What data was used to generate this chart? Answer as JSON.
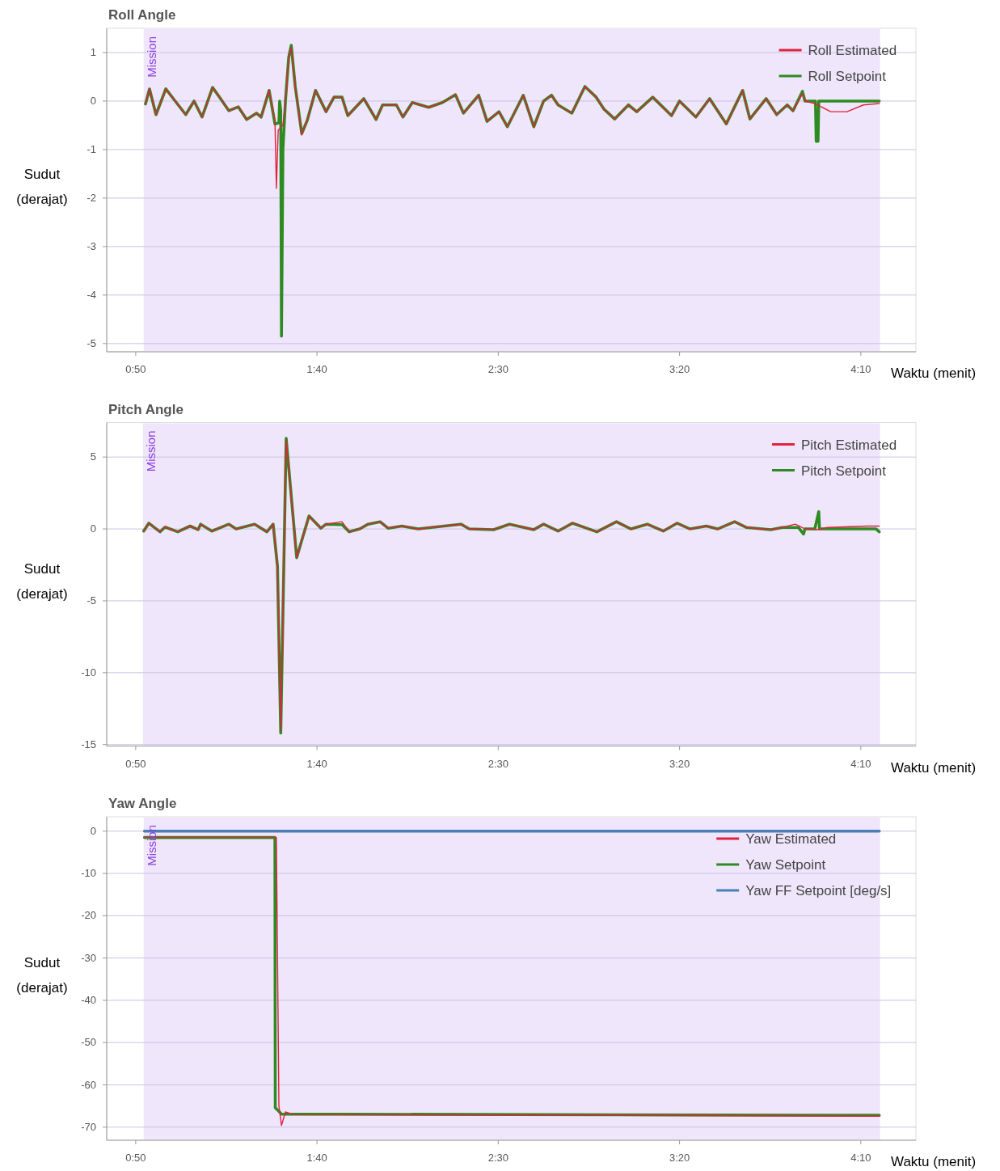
{
  "chart_data": [
    {
      "type": "line",
      "title": "Roll Angle",
      "xlabel": "Waktu (menit)",
      "ylabel": "Sudut (derajat)",
      "xlim": [
        42,
        265.2
      ],
      "xticks": [
        {
          "value": 50,
          "label": "0:50"
        },
        {
          "value": 100,
          "label": "1:40"
        },
        {
          "value": 150,
          "label": "2:30"
        },
        {
          "value": 200,
          "label": "3:20"
        },
        {
          "value": 250,
          "label": "4:10"
        }
      ],
      "ylim": [
        -5.17,
        1.5
      ],
      "yticks": [
        -5,
        -4,
        -3,
        -2,
        -1,
        0,
        1
      ],
      "grid": "y",
      "legend": "top right",
      "bands": [
        {
          "axis": "x",
          "from": 52.2,
          "to": 255.3,
          "label": "Mission",
          "color": "#efe6fb"
        }
      ],
      "series": [
        {
          "name": "Roll Estimated",
          "color": "#e0223f",
          "x": [
            52.7,
            53.8,
            55.6,
            58.3,
            61.2,
            63.8,
            66.1,
            68.3,
            71.2,
            73.4,
            75.7,
            78.3,
            80.6,
            83.3,
            84.6,
            86.8,
            88.4,
            88.8,
            89.3,
            90.6,
            91.3,
            92.2,
            92.9,
            94.0,
            95.8,
            97.3,
            99.6,
            102.5,
            104.7,
            106.9,
            108.5,
            112.9,
            116.3,
            118.1,
            121.9,
            123.7,
            126.3,
            130.8,
            134.6,
            138.2,
            140.4,
            144.6,
            146.9,
            150.2,
            152.5,
            156.9,
            159.8,
            162.5,
            164.7,
            166.5,
            170.3,
            173.9,
            177.0,
            179.2,
            182.1,
            185.9,
            188.2,
            192.6,
            197.8,
            200.0,
            204.5,
            208.3,
            212.9,
            217.4,
            219.4,
            223.9,
            226.8,
            229.7,
            231.3,
            233.9,
            234.6,
            237.3,
            241.7,
            246.2,
            250.7,
            255.1
          ],
          "values": [
            -0.06,
            0.25,
            -0.28,
            0.25,
            -0.03,
            -0.28,
            0,
            -0.33,
            0.28,
            0.05,
            -0.2,
            -0.12,
            -0.38,
            -0.25,
            -0.33,
            0.22,
            -0.4,
            -1.8,
            -0.6,
            -0.5,
            0.0,
            0.9,
            1.1,
            0.3,
            -0.7,
            -0.4,
            0.22,
            -0.22,
            0.08,
            0.08,
            -0.3,
            0.05,
            -0.38,
            -0.08,
            -0.08,
            -0.33,
            -0.03,
            -0.13,
            -0.03,
            0.13,
            -0.25,
            0.12,
            -0.42,
            -0.22,
            -0.53,
            0.12,
            -0.53,
            0,
            0.12,
            -0.08,
            -0.25,
            0.3,
            0.08,
            -0.17,
            -0.37,
            -0.08,
            -0.22,
            0.08,
            -0.3,
            0,
            -0.33,
            0.05,
            -0.47,
            0.22,
            -0.37,
            0.05,
            -0.28,
            -0.08,
            -0.2,
            0.15,
            0,
            -0.05,
            -0.22,
            -0.22,
            -0.08,
            -0.05
          ]
        },
        {
          "name": "Roll Setpoint",
          "color": "#2e8b22",
          "x": [
            52.7,
            53.8,
            55.6,
            58.3,
            61.2,
            63.8,
            66.1,
            68.3,
            71.2,
            73.4,
            75.7,
            78.3,
            80.6,
            83.3,
            84.6,
            86.8,
            88.4,
            89.5,
            89.7,
            90.0,
            90.2,
            90.6,
            91.3,
            92.2,
            92.9,
            94.0,
            95.8,
            97.3,
            99.6,
            102.5,
            104.7,
            106.9,
            108.5,
            112.9,
            116.3,
            118.1,
            121.9,
            123.7,
            126.3,
            130.8,
            134.6,
            138.2,
            140.4,
            144.6,
            146.9,
            150.2,
            152.5,
            156.9,
            159.8,
            162.5,
            164.7,
            166.5,
            170.3,
            173.9,
            177.0,
            179.2,
            182.1,
            185.9,
            188.2,
            192.6,
            197.8,
            200.0,
            204.5,
            208.3,
            212.9,
            217.4,
            219.4,
            223.9,
            226.8,
            229.7,
            231.3,
            233.9,
            234.6,
            237.5,
            237.7,
            238.2,
            238.4,
            255.1
          ],
          "values": [
            -0.06,
            0.25,
            -0.28,
            0.25,
            -0.03,
            -0.28,
            0,
            -0.33,
            0.28,
            0.05,
            -0.2,
            -0.12,
            -0.38,
            -0.25,
            -0.33,
            0.22,
            -0.47,
            -0.45,
            0,
            -0.2,
            -4.85,
            -1.0,
            0.0,
            0.9,
            1.15,
            0.3,
            -0.67,
            -0.4,
            0.22,
            -0.22,
            0.08,
            0.08,
            -0.3,
            0.05,
            -0.38,
            -0.08,
            -0.08,
            -0.33,
            -0.03,
            -0.13,
            -0.03,
            0.13,
            -0.25,
            0.12,
            -0.42,
            -0.22,
            -0.53,
            0.12,
            -0.53,
            0,
            0.12,
            -0.08,
            -0.25,
            0.3,
            0.08,
            -0.17,
            -0.37,
            -0.08,
            -0.22,
            0.08,
            -0.3,
            0,
            -0.33,
            0.05,
            -0.47,
            0.22,
            -0.37,
            0.05,
            -0.28,
            -0.08,
            -0.2,
            0.2,
            0,
            0,
            -0.83,
            -0.83,
            0,
            0
          ]
        }
      ]
    },
    {
      "type": "line",
      "title": "Pitch Angle",
      "xlabel": "Waktu (menit)",
      "ylabel": "Sudut (derajat)",
      "xlim": [
        42,
        265.2
      ],
      "xticks": [
        {
          "value": 50,
          "label": "0:50"
        },
        {
          "value": 100,
          "label": "1:40"
        },
        {
          "value": 150,
          "label": "2:30"
        },
        {
          "value": 200,
          "label": "3:20"
        },
        {
          "value": 250,
          "label": "4:10"
        }
      ],
      "ylim": [
        -15.1,
        7.4
      ],
      "yticks": [
        -15,
        -10,
        -5,
        0,
        5
      ],
      "grid": "y",
      "legend": "top right",
      "bands": [
        {
          "axis": "x",
          "from": 52.0,
          "to": 255.3,
          "label": "Mission",
          "color": "#efe6fb"
        }
      ],
      "series": [
        {
          "name": "Pitch Estimated",
          "color": "#e0223f",
          "x": [
            52.2,
            53.6,
            56.7,
            58.1,
            61.6,
            65.0,
            67.2,
            67.9,
            71.0,
            75.7,
            77.7,
            82.8,
            86.2,
            87.9,
            89.1,
            90.0,
            91.5,
            94.4,
            97.8,
            101.1,
            102.5,
            106.9,
            108.9,
            111.8,
            114.1,
            117.4,
            119.6,
            123.4,
            127.9,
            139.7,
            142.0,
            148.7,
            153.1,
            157.1,
            159.8,
            162.5,
            166.5,
            170.5,
            177.2,
            182.6,
            186.6,
            191.1,
            195.5,
            199.3,
            202.9,
            207.4,
            210.5,
            215.2,
            218.5,
            225.2,
            228.3,
            231.9,
            234.2,
            237.9,
            240.8,
            252.0,
            255.1
          ],
          "values": [
            -0.15,
            0.4,
            -0.2,
            0.13,
            -0.2,
            0.2,
            -0.05,
            0.33,
            -0.15,
            0.33,
            0,
            0.33,
            -0.2,
            0.33,
            -2.6,
            -14.0,
            6.2,
            -2.0,
            0.9,
            0.05,
            0.33,
            0.5,
            -0.2,
            0,
            0.33,
            0.5,
            0.05,
            0.2,
            0,
            0.33,
            0,
            -0.05,
            0.33,
            0.1,
            -0.05,
            0.33,
            -0.15,
            0.4,
            -0.2,
            0.5,
            0,
            0.33,
            -0.15,
            0.4,
            0,
            0.2,
            0,
            0.5,
            0.1,
            -0.05,
            0.1,
            0.33,
            0.05,
            -0.05,
            0.1,
            0.2,
            0.2
          ]
        },
        {
          "name": "Pitch Setpoint",
          "color": "#2e8b22",
          "x": [
            52.2,
            53.6,
            56.7,
            58.1,
            61.6,
            65.0,
            67.2,
            67.9,
            71.0,
            75.7,
            77.7,
            82.8,
            86.2,
            87.9,
            89.1,
            90.0,
            91.5,
            94.4,
            97.8,
            101.1,
            102.5,
            106.9,
            108.9,
            111.8,
            114.1,
            117.4,
            119.6,
            123.4,
            127.9,
            139.7,
            142.0,
            148.7,
            153.1,
            157.1,
            159.8,
            162.5,
            166.5,
            170.5,
            177.2,
            182.6,
            186.6,
            191.1,
            195.5,
            199.3,
            202.9,
            207.4,
            210.5,
            215.2,
            218.5,
            225.2,
            228.3,
            232.8,
            234.2,
            234.6,
            237.3,
            238.4,
            238.6,
            254.2,
            255.1
          ],
          "values": [
            -0.15,
            0.4,
            -0.2,
            0.13,
            -0.2,
            0.2,
            -0.05,
            0.33,
            -0.15,
            0.33,
            0,
            0.33,
            -0.2,
            0.33,
            -2.6,
            -14.2,
            6.3,
            -2.0,
            0.9,
            0.05,
            0.33,
            0.3,
            -0.2,
            0,
            0.33,
            0.5,
            0.05,
            0.2,
            0,
            0.33,
            0,
            -0.05,
            0.33,
            0.1,
            -0.05,
            0.33,
            -0.15,
            0.4,
            -0.2,
            0.5,
            0,
            0.33,
            -0.15,
            0.4,
            0,
            0.2,
            0,
            0.5,
            0.1,
            -0.05,
            0.1,
            0.1,
            -0.35,
            0,
            0,
            1.2,
            0,
            0,
            -0.2
          ]
        }
      ]
    },
    {
      "type": "line",
      "title": "Yaw Angle",
      "xlabel": "Waktu (menit)",
      "ylabel": "Sudut (derajat)",
      "xlim": [
        42,
        265.2
      ],
      "xticks": [
        {
          "value": 50,
          "label": "0:50"
        },
        {
          "value": 100,
          "label": "1:40"
        },
        {
          "value": 150,
          "label": "2:30"
        },
        {
          "value": 200,
          "label": "3:20"
        },
        {
          "value": 250,
          "label": "4:10"
        }
      ],
      "ylim": [
        -73.1,
        3.4
      ],
      "yticks": [
        -70,
        -60,
        -50,
        -40,
        -30,
        -20,
        -10,
        0
      ],
      "grid": "y",
      "legend": "top right",
      "bands": [
        {
          "axis": "x",
          "from": 52.2,
          "to": 255.3,
          "label": "Mission",
          "color": "#efe6fb"
        }
      ],
      "series": [
        {
          "name": "Yaw Estimated",
          "color": "#e0223f",
          "x": [
            52.4,
            88.8,
            89.5,
            90.2,
            91.3,
            93.5,
            255.1
          ],
          "values": [
            -1.5,
            -1.5,
            -65,
            -69.6,
            -66.4,
            -67.0,
            -67.4
          ]
        },
        {
          "name": "Yaw Setpoint",
          "color": "#2e8b22",
          "x": [
            52.4,
            88.4,
            88.5,
            90.2,
            255.1
          ],
          "values": [
            -1.5,
            -1.5,
            -65.4,
            -66.9,
            -67.2
          ]
        },
        {
          "name": "Yaw FF Setpoint [deg/s]",
          "color": "#4a7fb5",
          "x": [
            52.4,
            255.1
          ],
          "values": [
            0,
            0
          ]
        }
      ]
    }
  ]
}
